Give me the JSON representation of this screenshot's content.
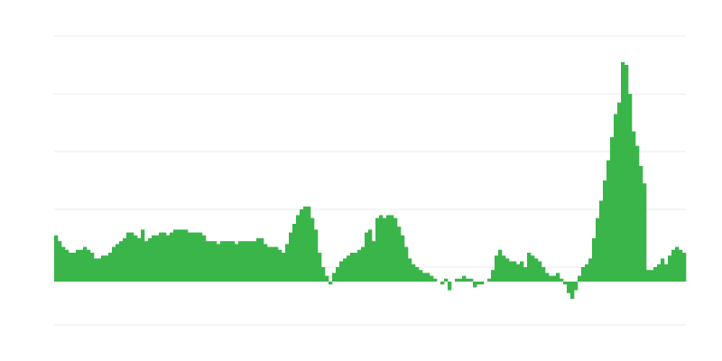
{
  "chart_data": {
    "type": "bar",
    "color": "#39b54a",
    "grid": true,
    "ylim": [
      -15,
      85
    ],
    "yticks": [
      -15,
      5,
      25,
      45,
      65,
      85
    ],
    "values": [
      16,
      14,
      12,
      11,
      10,
      10,
      11,
      11,
      12,
      11,
      10,
      8,
      8,
      9,
      9,
      10,
      12,
      13,
      14,
      15,
      17,
      17,
      16,
      15,
      18,
      14,
      15,
      16,
      16,
      17,
      17,
      16,
      17,
      18,
      18,
      18,
      18,
      17,
      17,
      17,
      17,
      16,
      14,
      14,
      14,
      13,
      14,
      14,
      14,
      14,
      13,
      14,
      14,
      14,
      14,
      14,
      15,
      15,
      13,
      12,
      12,
      12,
      11,
      10,
      13,
      17,
      20,
      23,
      25,
      26,
      26,
      22,
      18,
      10,
      5,
      2,
      -1,
      3,
      5,
      7,
      8,
      9,
      10,
      10,
      11,
      12,
      17,
      18,
      14,
      22,
      23,
      22,
      23,
      23,
      22,
      19,
      16,
      12,
      8,
      6,
      5,
      4,
      3,
      3,
      2,
      1,
      0,
      -1,
      1,
      -3,
      0,
      1,
      1,
      2,
      1,
      1,
      -2,
      -1,
      -1,
      0,
      1,
      4,
      9,
      11,
      9,
      8,
      7,
      7,
      6,
      7,
      5,
      10,
      9,
      8,
      7,
      5,
      3,
      2,
      2,
      3,
      1,
      -1,
      -4,
      -6,
      -3,
      2,
      5,
      6,
      8,
      15,
      22,
      28,
      35,
      42,
      50,
      58,
      62,
      76,
      75,
      65,
      52,
      47,
      40,
      34,
      4,
      4,
      5,
      6,
      8,
      6,
      9,
      11,
      12,
      11,
      10
    ]
  }
}
